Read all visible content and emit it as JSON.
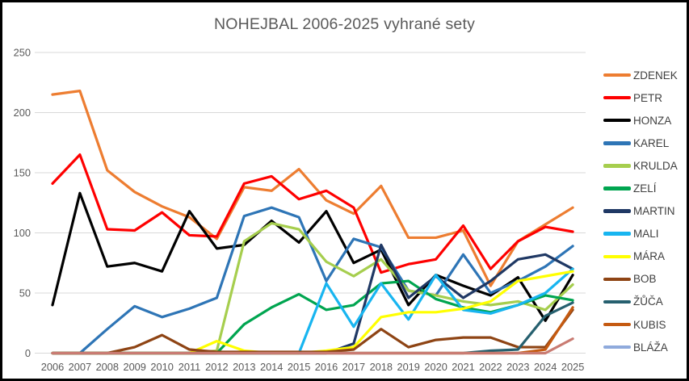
{
  "chart_title": "NOHEJBAL 2006-2025 vyhrané sety",
  "chart_data": {
    "type": "line",
    "title": "NOHEJBAL 2006-2025 vyhrané sety",
    "xlabel": "",
    "ylabel": "",
    "ylim": [
      0,
      250
    ],
    "y_ticks": [
      0,
      50,
      100,
      150,
      200,
      250
    ],
    "grid": true,
    "legend_position": "right",
    "categories": [
      "2006",
      "2007",
      "2008",
      "2009",
      "2010",
      "2011",
      "2012",
      "2013",
      "2014",
      "2015",
      "2016",
      "2017",
      "2018",
      "2019",
      "2020",
      "2021",
      "2022",
      "2023",
      "2024",
      "2025"
    ],
    "series": [
      {
        "name": "ZDENEK",
        "color": "#ED7D31",
        "values": [
          215,
          218,
          152,
          134,
          122,
          113,
          95,
          138,
          135,
          153,
          127,
          116,
          139,
          96,
          96,
          102,
          56,
          93,
          107,
          121
        ]
      },
      {
        "name": "PETR",
        "color": "#FE0000",
        "values": [
          141,
          165,
          103,
          102,
          117,
          98,
          97,
          141,
          147,
          128,
          135,
          121,
          67,
          74,
          78,
          106,
          70,
          93,
          105,
          101
        ]
      },
      {
        "name": "HONZA",
        "color": "#000000",
        "values": [
          40,
          133,
          72,
          75,
          68,
          118,
          87,
          90,
          110,
          92,
          118,
          75,
          86,
          40,
          65,
          56,
          48,
          63,
          27,
          65
        ]
      },
      {
        "name": "KAREL",
        "color": "#2E75B6",
        "values": [
          0,
          0,
          20,
          39,
          30,
          37,
          46,
          114,
          121,
          113,
          60,
          95,
          88,
          52,
          48,
          82,
          50,
          60,
          72,
          89
        ]
      },
      {
        "name": "KRULDA",
        "color": "#A6CE4E",
        "values": [
          0,
          0,
          0,
          0,
          0,
          0,
          2,
          93,
          108,
          103,
          76,
          64,
          78,
          52,
          48,
          43,
          40,
          43,
          36,
          57
        ]
      },
      {
        "name": "ZELÍ",
        "color": "#00A550",
        "values": [
          0,
          0,
          0,
          0,
          0,
          0,
          0,
          24,
          38,
          49,
          36,
          40,
          58,
          60,
          45,
          38,
          34,
          40,
          48,
          44
        ]
      },
      {
        "name": "MARTIN",
        "color": "#1F3864",
        "values": [
          0,
          0,
          0,
          0,
          0,
          0,
          0,
          0,
          0,
          0,
          0,
          8,
          90,
          46,
          64,
          46,
          60,
          78,
          82,
          70
        ]
      },
      {
        "name": "MALI",
        "color": "#18B5F0",
        "values": [
          0,
          0,
          0,
          0,
          0,
          0,
          0,
          0,
          0,
          0,
          58,
          22,
          58,
          28,
          65,
          36,
          33,
          40,
          50,
          70
        ]
      },
      {
        "name": "MÁRA",
        "color": "#FFFF00",
        "values": [
          0,
          0,
          0,
          0,
          0,
          0,
          10,
          2,
          0,
          0,
          2,
          5,
          30,
          34,
          34,
          37,
          43,
          60,
          64,
          68
        ]
      },
      {
        "name": "BOB",
        "color": "#8E4414",
        "values": [
          0,
          0,
          0,
          5,
          15,
          3,
          1,
          1,
          1,
          1,
          1,
          3,
          20,
          5,
          11,
          13,
          13,
          5,
          5,
          36
        ]
      },
      {
        "name": "ŽŮČA",
        "color": "#26606F",
        "values": [
          0,
          0,
          0,
          0,
          0,
          0,
          0,
          0,
          0,
          0,
          0,
          0,
          0,
          0,
          0,
          0,
          2,
          3,
          31,
          42
        ]
      },
      {
        "name": "KUBIS",
        "color": "#C55A11",
        "values": [
          0,
          0,
          0,
          0,
          0,
          0,
          0,
          0,
          0,
          0,
          0,
          0,
          0,
          0,
          0,
          0,
          0,
          0,
          3,
          38
        ]
      },
      {
        "name": "BLÁŽA",
        "color": "#8FAADC",
        "line_color": "#C97B72",
        "values": [
          0,
          0,
          0,
          0,
          0,
          0,
          0,
          0,
          0,
          0,
          0,
          0,
          0,
          0,
          0,
          0,
          0,
          0,
          0,
          12
        ]
      }
    ],
    "axis_tick_color": "#595959",
    "gridline_color": "#D9D9D9"
  }
}
